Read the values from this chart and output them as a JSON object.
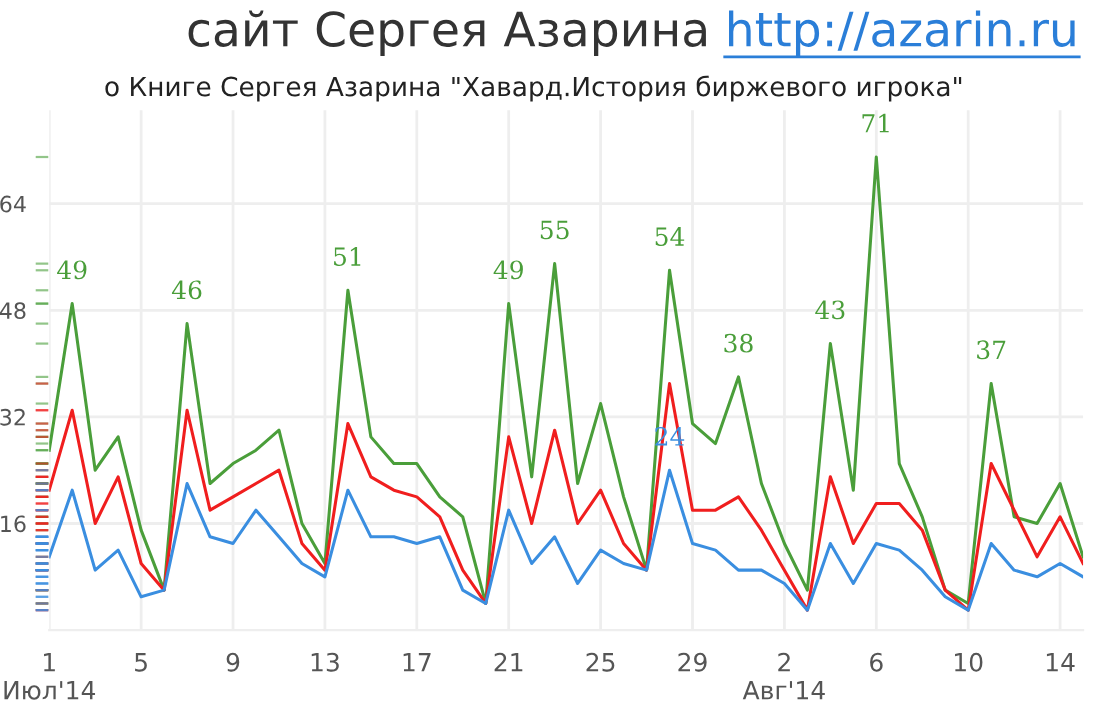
{
  "chart_data": {
    "type": "line",
    "title": "сайт Сергея Азарина http://azarin.ru",
    "subtitle": "о Книге Сергея Азарина \"Хавард.История биржевого игрока\"",
    "x": [
      "2014-07-01",
      "2014-07-02",
      "2014-07-03",
      "2014-07-04",
      "2014-07-05",
      "2014-07-06",
      "2014-07-07",
      "2014-07-08",
      "2014-07-09",
      "2014-07-10",
      "2014-07-11",
      "2014-07-12",
      "2014-07-13",
      "2014-07-14",
      "2014-07-15",
      "2014-07-16",
      "2014-07-17",
      "2014-07-18",
      "2014-07-19",
      "2014-07-20",
      "2014-07-21",
      "2014-07-22",
      "2014-07-23",
      "2014-07-24",
      "2014-07-25",
      "2014-07-26",
      "2014-07-27",
      "2014-07-28",
      "2014-07-29",
      "2014-07-30",
      "2014-07-31",
      "2014-08-01",
      "2014-08-02",
      "2014-08-03",
      "2014-08-04",
      "2014-08-05",
      "2014-08-06",
      "2014-08-07",
      "2014-08-08",
      "2014-08-09",
      "2014-08-10",
      "2014-08-11",
      "2014-08-12",
      "2014-08-13",
      "2014-08-14",
      "2014-08-15"
    ],
    "series": [
      {
        "color": "#4a9e3a",
        "values": [
          27,
          49,
          24,
          29,
          15,
          6,
          46,
          22,
          25,
          27,
          30,
          16,
          10,
          51,
          29,
          25,
          25,
          20,
          17,
          4,
          49,
          23,
          55,
          22,
          34,
          20,
          9,
          54,
          31,
          28,
          38,
          22,
          13,
          6,
          43,
          21,
          71,
          25,
          17,
          6,
          4,
          37,
          17,
          16,
          22,
          11
        ],
        "value_labels": [
          null,
          "49",
          null,
          null,
          null,
          null,
          "46",
          null,
          null,
          null,
          null,
          null,
          null,
          "51",
          null,
          null,
          null,
          null,
          null,
          null,
          "49",
          null,
          "55",
          null,
          null,
          null,
          null,
          "54",
          null,
          null,
          "38",
          null,
          null,
          null,
          "43",
          null,
          "71",
          null,
          null,
          null,
          null,
          "37",
          null,
          null,
          null,
          null
        ]
      },
      {
        "color": "#f01e1e",
        "values": [
          21,
          33,
          16,
          23,
          10,
          6,
          33,
          18,
          20,
          22,
          24,
          13,
          9,
          31,
          23,
          21,
          20,
          17,
          9,
          4,
          29,
          16,
          30,
          16,
          21,
          13,
          9,
          37,
          18,
          18,
          20,
          15,
          9,
          3,
          23,
          13,
          19,
          19,
          15,
          6,
          3,
          25,
          18,
          11,
          17,
          10
        ]
      },
      {
        "color": "#3a8ee0",
        "values": [
          11,
          21,
          9,
          12,
          5,
          6,
          22,
          14,
          13,
          18,
          14,
          10,
          8,
          21,
          14,
          14,
          13,
          14,
          6,
          4,
          18,
          10,
          14,
          7,
          12,
          10,
          9,
          24,
          13,
          12,
          9,
          9,
          7,
          3,
          13,
          7,
          13,
          12,
          9,
          5,
          3,
          13,
          9,
          8,
          10,
          8
        ],
        "value_labels": [
          null,
          null,
          null,
          null,
          null,
          null,
          null,
          null,
          null,
          null,
          null,
          null,
          null,
          null,
          null,
          null,
          null,
          null,
          null,
          null,
          null,
          null,
          null,
          null,
          null,
          null,
          null,
          "24",
          null,
          null,
          null,
          null,
          null,
          null,
          null,
          null,
          null,
          null,
          null,
          null,
          null,
          null,
          null,
          null,
          null,
          null
        ]
      }
    ],
    "xlim": [
      "2014-07-01",
      "2014-08-15"
    ],
    "xticks": [
      {
        "value": "2014-07-01",
        "label": "1\nИюл'14"
      },
      {
        "value": "2014-07-05",
        "label": "5"
      },
      {
        "value": "2014-07-09",
        "label": "9"
      },
      {
        "value": "2014-07-13",
        "label": "13"
      },
      {
        "value": "2014-07-17",
        "label": "17"
      },
      {
        "value": "2014-07-21",
        "label": "21"
      },
      {
        "value": "2014-07-25",
        "label": "25"
      },
      {
        "value": "2014-07-29",
        "label": "29"
      },
      {
        "value": "2014-08-02",
        "label": "2\nАвг'14"
      },
      {
        "value": "2014-08-06",
        "label": "6"
      },
      {
        "value": "2014-08-10",
        "label": "10"
      },
      {
        "value": "2014-08-14",
        "label": "14"
      }
    ],
    "ylim": [
      0,
      78
    ],
    "yticks": [
      16,
      32,
      48,
      64
    ],
    "grid": true,
    "line_style": "solid",
    "marker": "none"
  }
}
